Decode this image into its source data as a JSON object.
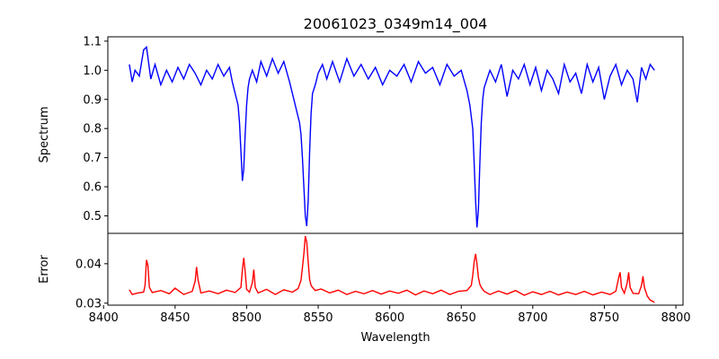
{
  "chart_data": {
    "type": "line",
    "title": "20061023_0349m14_004",
    "xlabel": "Wavelength",
    "x_ticks": [
      8400,
      8450,
      8500,
      8550,
      8600,
      8650,
      8700,
      8750,
      8800
    ],
    "xlim": [
      8403,
      8805
    ],
    "panels": [
      {
        "name": "spectrum",
        "ylabel": "Spectrum",
        "ylim": [
          0.44,
          1.115
        ],
        "y_ticks": [
          0.5,
          0.6,
          0.7,
          0.8,
          0.9,
          1.0,
          1.1
        ],
        "color": "#0000ff",
        "x": [
          8418,
          8420,
          8422,
          8425,
          8428,
          8430,
          8433,
          8436,
          8440,
          8444,
          8448,
          8452,
          8456,
          8460,
          8464,
          8468,
          8472,
          8476,
          8480,
          8484,
          8488,
          8490,
          8492,
          8494,
          8495,
          8496,
          8497,
          8498,
          8499,
          8500,
          8501,
          8502,
          8504,
          8507,
          8510,
          8514,
          8518,
          8522,
          8526,
          8530,
          8533,
          8535,
          8537,
          8538,
          8539,
          8540,
          8541,
          8542,
          8543,
          8544,
          8545,
          8546,
          8548,
          8550,
          8553,
          8556,
          8560,
          8565,
          8570,
          8575,
          8580,
          8585,
          8590,
          8595,
          8600,
          8605,
          8610,
          8615,
          8620,
          8625,
          8630,
          8635,
          8640,
          8645,
          8650,
          8654,
          8656,
          8658,
          8659,
          8660,
          8661,
          8662,
          8663,
          8664,
          8665,
          8666,
          8668,
          8670,
          8674,
          8678,
          8682,
          8686,
          8690,
          8694,
          8698,
          8702,
          8706,
          8710,
          8714,
          8718,
          8722,
          8726,
          8730,
          8734,
          8738,
          8742,
          8746,
          8750,
          8754,
          8758,
          8762,
          8766,
          8770,
          8773,
          8776,
          8779,
          8782,
          8785
        ],
        "values": [
          1.02,
          0.96,
          1.0,
          0.98,
          1.07,
          1.08,
          0.97,
          1.02,
          0.95,
          1.0,
          0.96,
          1.01,
          0.97,
          1.02,
          0.99,
          0.95,
          1.0,
          0.97,
          1.02,
          0.98,
          1.01,
          0.96,
          0.92,
          0.88,
          0.82,
          0.72,
          0.62,
          0.66,
          0.78,
          0.88,
          0.94,
          0.97,
          1.0,
          0.96,
          1.03,
          0.98,
          1.04,
          0.99,
          1.03,
          0.96,
          0.9,
          0.86,
          0.82,
          0.78,
          0.7,
          0.6,
          0.5,
          0.465,
          0.55,
          0.72,
          0.85,
          0.92,
          0.95,
          0.99,
          1.02,
          0.97,
          1.03,
          0.96,
          1.04,
          0.98,
          1.02,
          0.97,
          1.01,
          0.95,
          1.0,
          0.98,
          1.02,
          0.96,
          1.03,
          0.99,
          1.01,
          0.95,
          1.02,
          0.98,
          1.0,
          0.93,
          0.88,
          0.8,
          0.68,
          0.55,
          0.46,
          0.52,
          0.68,
          0.82,
          0.9,
          0.94,
          0.97,
          1.0,
          0.96,
          1.02,
          0.91,
          1.0,
          0.97,
          1.02,
          0.95,
          1.01,
          0.93,
          1.0,
          0.97,
          0.92,
          1.02,
          0.96,
          0.99,
          0.92,
          1.02,
          0.96,
          1.01,
          0.9,
          0.98,
          1.02,
          0.95,
          1.0,
          0.97,
          0.89,
          1.01,
          0.97,
          1.02,
          1.0
        ]
      },
      {
        "name": "error",
        "ylabel": "Error",
        "ylim": [
          0.0295,
          0.0477
        ],
        "y_ticks": [
          0.03,
          0.04
        ],
        "y_tick_labels": [
          "0.03",
          "0.04"
        ],
        "color": "#ff0000",
        "x": [
          8418,
          8420,
          8424,
          8428,
          8429,
          8430,
          8431,
          8432,
          8434,
          8440,
          8446,
          8450,
          8456,
          8462,
          8464,
          8465,
          8466,
          8468,
          8474,
          8480,
          8486,
          8492,
          8496,
          8497,
          8498,
          8499,
          8500,
          8502,
          8504,
          8505,
          8506,
          8508,
          8514,
          8520,
          8526,
          8532,
          8536,
          8538,
          8539,
          8540,
          8541,
          8542,
          8543,
          8544,
          8545,
          8546,
          8548,
          8552,
          8558,
          8564,
          8570,
          8576,
          8582,
          8588,
          8594,
          8600,
          8606,
          8612,
          8618,
          8624,
          8630,
          8636,
          8642,
          8648,
          8654,
          8657,
          8658,
          8659,
          8660,
          8661,
          8662,
          8663,
          8664,
          8666,
          8670,
          8676,
          8682,
          8688,
          8694,
          8700,
          8706,
          8712,
          8718,
          8724,
          8730,
          8736,
          8742,
          8748,
          8754,
          8758,
          8760,
          8761,
          8762,
          8764,
          8766,
          8767,
          8768,
          8770,
          8774,
          8776,
          8777,
          8778,
          8780,
          8782,
          8785
        ],
        "values": [
          0.0334,
          0.0322,
          0.0326,
          0.0328,
          0.0345,
          0.041,
          0.0395,
          0.034,
          0.0327,
          0.0332,
          0.0324,
          0.0338,
          0.0322,
          0.033,
          0.0355,
          0.0392,
          0.036,
          0.0326,
          0.0331,
          0.0324,
          0.0333,
          0.0327,
          0.034,
          0.0385,
          0.0415,
          0.038,
          0.0335,
          0.0328,
          0.0352,
          0.0385,
          0.034,
          0.0326,
          0.0335,
          0.0322,
          0.0334,
          0.0328,
          0.0337,
          0.0358,
          0.039,
          0.0425,
          0.047,
          0.0455,
          0.0405,
          0.036,
          0.0345,
          0.034,
          0.0332,
          0.0336,
          0.0326,
          0.0333,
          0.0322,
          0.033,
          0.0324,
          0.0332,
          0.0323,
          0.0331,
          0.0325,
          0.0333,
          0.0321,
          0.0331,
          0.0324,
          0.0333,
          0.0322,
          0.033,
          0.0332,
          0.0345,
          0.037,
          0.0405,
          0.0425,
          0.04,
          0.0365,
          0.0348,
          0.034,
          0.033,
          0.0322,
          0.0331,
          0.0323,
          0.0332,
          0.032,
          0.0329,
          0.0322,
          0.033,
          0.0321,
          0.0328,
          0.0322,
          0.033,
          0.0321,
          0.0328,
          0.0322,
          0.033,
          0.0365,
          0.0378,
          0.034,
          0.0325,
          0.0352,
          0.0378,
          0.034,
          0.0325,
          0.0324,
          0.0345,
          0.0368,
          0.034,
          0.0318,
          0.0308,
          0.0302
        ]
      }
    ]
  }
}
